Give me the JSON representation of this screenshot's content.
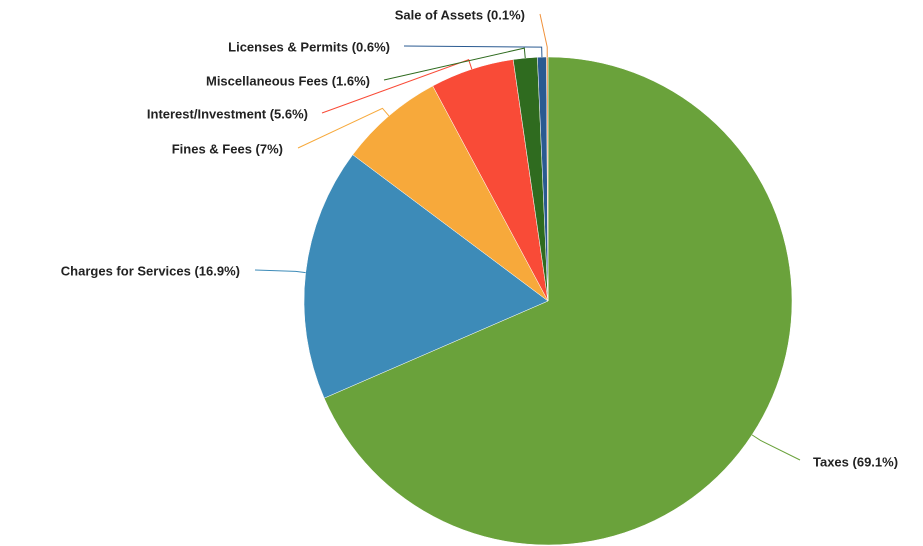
{
  "chart_data": {
    "type": "pie",
    "categories": [
      "Taxes (69.1%)",
      "Charges for Services (16.9%)",
      "Fines & Fees (7%)",
      "Interest/Investment (5.6%)",
      "Miscellaneous Fees (1.6%)",
      "Licenses & Permits (0.6%)",
      "Sale of Assets (0.1%)"
    ],
    "values": [
      69.1,
      16.9,
      7,
      5.6,
      1.6,
      0.6,
      0.1
    ],
    "colors": [
      "#6aa23b",
      "#3d8bb8",
      "#f7a93b",
      "#f94b37",
      "#2f6b1f",
      "#2a5a91",
      "#f0913a"
    ]
  }
}
